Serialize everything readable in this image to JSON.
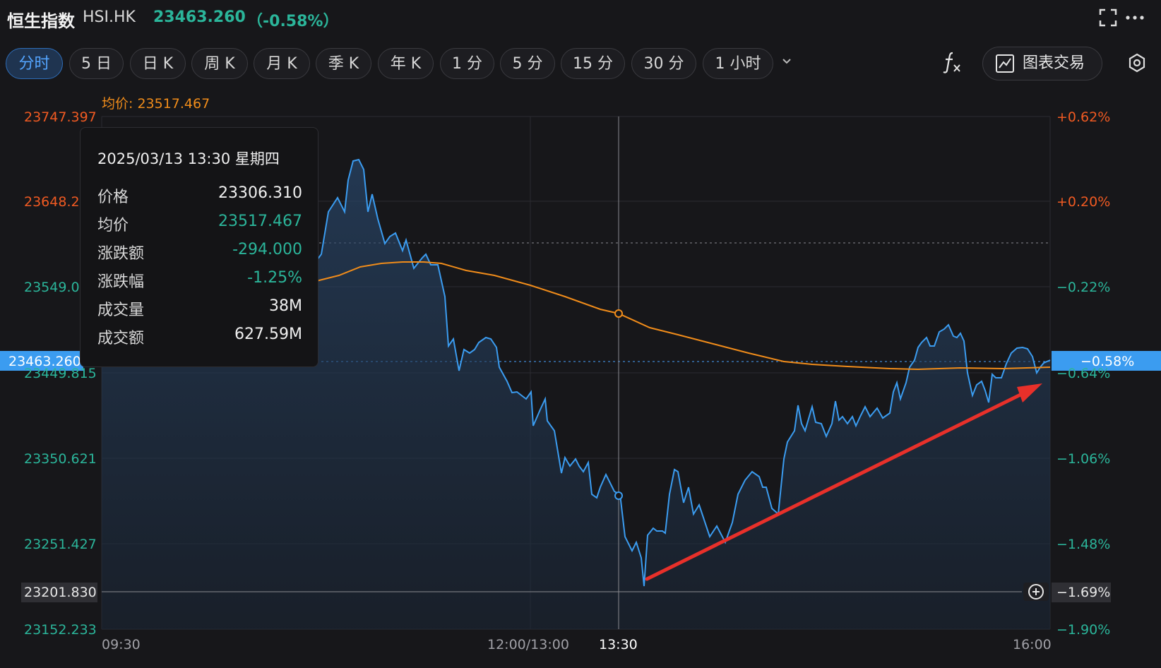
{
  "header": {
    "index_name": "恒生指数",
    "symbol": "HSI.HK",
    "last_price": "23463.260",
    "change_pct": "（-0.58%）",
    "icons": [
      "fullscreen-icon",
      "more-icon"
    ]
  },
  "toolbar": {
    "tabs": [
      "分时",
      "5 日",
      "日 K",
      "周 K",
      "月 K",
      "季 K",
      "年 K",
      "1 分",
      "5 分",
      "15 分",
      "30 分",
      "1 小时"
    ],
    "active_tab": "分时",
    "more_icon": "chevron-down-icon",
    "formula_icon": "fx-icon",
    "trade_button": "图表交易",
    "settings_icon": "settings-icon"
  },
  "chart": {
    "avg_label": "均价: 23517.467",
    "left_axis": [
      "23747.397",
      "23648.2",
      "23549.0",
      "23449.815",
      "23350.621",
      "23251.427",
      "23201.830",
      "23152.233"
    ],
    "right_axis": [
      "+0.62%",
      "+0.20%",
      "−0.22%",
      "−0.64%",
      "−1.06%",
      "−1.48%",
      "−1.69%",
      "−1.90%"
    ],
    "current_price_tag": "23463.260",
    "current_pct_tag": "−0.58%",
    "x_axis": [
      "09:30",
      "12:00/13:00",
      "13:30",
      "16:00"
    ],
    "colors": {
      "up": "#f05a22",
      "down": "#2bb59a",
      "line": "#3b9cf0",
      "avg": "#f08c1a",
      "arrow": "#e8302a"
    }
  },
  "chart_data": {
    "type": "line",
    "x_label_ticks": [
      "09:30",
      "12:00/13:00",
      "13:30",
      "16:00"
    ],
    "ylim": [
      23152.233,
      23747.397
    ],
    "series": [
      {
        "name": "价格",
        "values": [
          23590,
          23640,
          23700,
          23620,
          23560,
          23530,
          23470,
          23455,
          23410,
          23380,
          23340,
          23310,
          23306,
          23235,
          23200,
          23240,
          23310,
          23250,
          23300,
          23260,
          23330,
          23400,
          23420,
          23410,
          23440,
          23470,
          23510,
          23480,
          23440,
          23450,
          23463
        ]
      },
      {
        "name": "均价",
        "values": [
          23540,
          23550,
          23560,
          23555,
          23545,
          23530,
          23517,
          23495,
          23480,
          23470,
          23465,
          23462,
          23461,
          23460
        ]
      }
    ]
  },
  "tooltip": {
    "date": "2025/03/13 13:30 星期四",
    "rows": [
      {
        "k": "价格",
        "v": "23306.310"
      },
      {
        "k": "均价",
        "v": "23517.467"
      },
      {
        "k": "涨跌额",
        "v": "-294.000"
      },
      {
        "k": "涨跌幅",
        "v": "-1.25%"
      },
      {
        "k": "成交量",
        "v": "38M"
      },
      {
        "k": "成交额",
        "v": "627.59M"
      }
    ]
  }
}
